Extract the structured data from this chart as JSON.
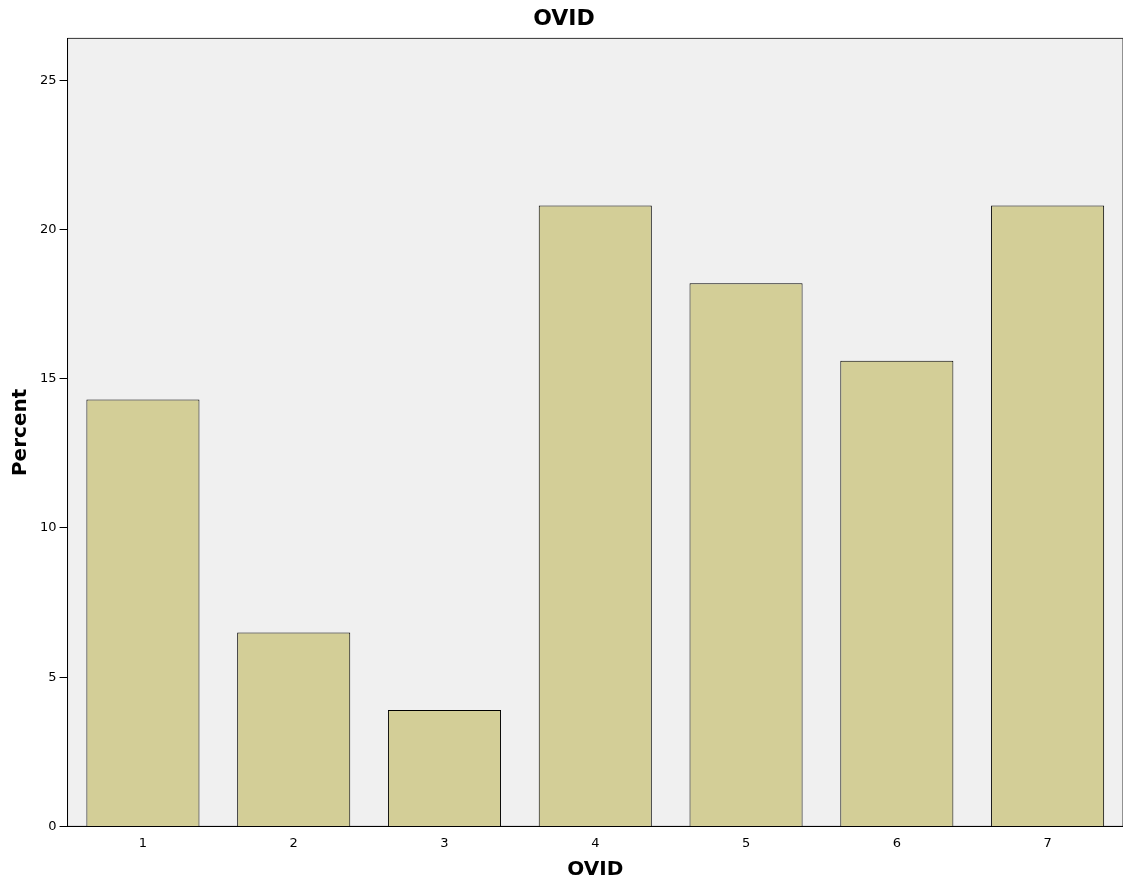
{
  "chart_data": {
    "type": "bar",
    "title": "OVID",
    "xlabel": "OVID",
    "ylabel": "Percent",
    "categories": [
      "1",
      "2",
      "3",
      "4",
      "5",
      "6",
      "7"
    ],
    "values": [
      14.3,
      6.5,
      3.9,
      20.8,
      18.2,
      15.6,
      20.8
    ],
    "color": "#d3ce97",
    "ylim": [
      0,
      26.4
    ],
    "yticks": [
      0,
      5,
      10,
      15,
      20,
      25
    ],
    "grid": false,
    "legend": false
  }
}
